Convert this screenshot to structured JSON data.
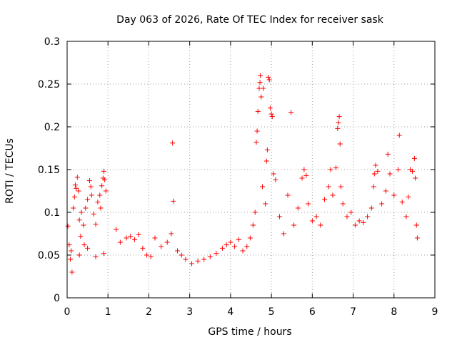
{
  "chart_data": {
    "type": "scatter",
    "title": "Day 063 of 2026, Rate Of TEC Index for receiver sask",
    "xlabel": "GPS time / hours",
    "ylabel": "ROTI / TECUs",
    "xlim": [
      0,
      9
    ],
    "ylim": [
      0,
      0.3
    ],
    "xticks": [
      "0",
      "1",
      "2",
      "3",
      "4",
      "5",
      "6",
      "7",
      "8",
      "9"
    ],
    "yticks": [
      "0",
      "0.05",
      "0.1",
      "0.15",
      "0.2",
      "0.25",
      "0.3"
    ],
    "grid": true,
    "marker": "+",
    "marker_color": "#ff0000",
    "series": [
      {
        "points": [
          [
            0.02,
            0.084
          ],
          [
            0.05,
            0.062
          ],
          [
            0.08,
            0.045
          ],
          [
            0.12,
            0.03
          ],
          [
            0.15,
            0.105
          ],
          [
            0.18,
            0.118
          ],
          [
            0.2,
            0.132
          ],
          [
            0.22,
            0.128
          ],
          [
            0.25,
            0.141
          ],
          [
            0.28,
            0.125
          ],
          [
            0.3,
            0.091
          ],
          [
            0.33,
            0.072
          ],
          [
            0.35,
            0.1
          ],
          [
            0.4,
            0.085
          ],
          [
            0.42,
            0.062
          ],
          [
            0.45,
            0.105
          ],
          [
            0.5,
            0.115
          ],
          [
            0.55,
            0.137
          ],
          [
            0.58,
            0.13
          ],
          [
            0.6,
            0.12
          ],
          [
            0.65,
            0.098
          ],
          [
            0.7,
            0.086
          ],
          [
            0.75,
            0.112
          ],
          [
            0.8,
            0.12
          ],
          [
            0.82,
            0.105
          ],
          [
            0.85,
            0.131
          ],
          [
            0.88,
            0.14
          ],
          [
            0.9,
            0.148
          ],
          [
            0.92,
            0.138
          ],
          [
            0.95,
            0.125
          ],
          [
            0.1,
            0.055
          ],
          [
            0.3,
            0.05
          ],
          [
            0.5,
            0.058
          ],
          [
            0.7,
            0.048
          ],
          [
            0.9,
            0.052
          ],
          [
            1.2,
            0.08
          ],
          [
            1.3,
            0.065
          ],
          [
            1.45,
            0.07
          ],
          [
            1.55,
            0.072
          ],
          [
            1.65,
            0.068
          ],
          [
            1.75,
            0.074
          ],
          [
            1.85,
            0.058
          ],
          [
            1.95,
            0.05
          ],
          [
            2.05,
            0.048
          ],
          [
            2.15,
            0.07
          ],
          [
            2.3,
            0.06
          ],
          [
            2.45,
            0.065
          ],
          [
            2.55,
            0.075
          ],
          [
            2.58,
            0.181
          ],
          [
            2.6,
            0.113
          ],
          [
            2.7,
            0.055
          ],
          [
            2.8,
            0.05
          ],
          [
            2.9,
            0.045
          ],
          [
            3.05,
            0.04
          ],
          [
            3.2,
            0.043
          ],
          [
            3.35,
            0.045
          ],
          [
            3.5,
            0.048
          ],
          [
            3.65,
            0.052
          ],
          [
            3.8,
            0.058
          ],
          [
            3.9,
            0.062
          ],
          [
            4.0,
            0.065
          ],
          [
            4.1,
            0.06
          ],
          [
            4.2,
            0.068
          ],
          [
            4.3,
            0.055
          ],
          [
            4.4,
            0.06
          ],
          [
            4.48,
            0.07
          ],
          [
            4.55,
            0.085
          ],
          [
            4.6,
            0.1
          ],
          [
            4.63,
            0.182
          ],
          [
            4.65,
            0.195
          ],
          [
            4.67,
            0.218
          ],
          [
            4.7,
            0.245
          ],
          [
            4.72,
            0.252
          ],
          [
            4.73,
            0.26
          ],
          [
            4.75,
            0.235
          ],
          [
            4.78,
            0.13
          ],
          [
            4.8,
            0.245
          ],
          [
            4.85,
            0.11
          ],
          [
            4.88,
            0.16
          ],
          [
            4.9,
            0.173
          ],
          [
            4.92,
            0.258
          ],
          [
            4.95,
            0.255
          ],
          [
            4.97,
            0.222
          ],
          [
            5.0,
            0.215
          ],
          [
            5.02,
            0.212
          ],
          [
            5.05,
            0.145
          ],
          [
            5.1,
            0.138
          ],
          [
            5.2,
            0.095
          ],
          [
            5.3,
            0.075
          ],
          [
            5.4,
            0.12
          ],
          [
            5.48,
            0.217
          ],
          [
            5.55,
            0.085
          ],
          [
            5.65,
            0.105
          ],
          [
            5.75,
            0.14
          ],
          [
            5.8,
            0.15
          ],
          [
            5.85,
            0.143
          ],
          [
            5.9,
            0.11
          ],
          [
            6.0,
            0.09
          ],
          [
            6.1,
            0.095
          ],
          [
            6.2,
            0.085
          ],
          [
            6.3,
            0.115
          ],
          [
            6.4,
            0.13
          ],
          [
            6.45,
            0.15
          ],
          [
            6.5,
            0.12
          ],
          [
            6.58,
            0.152
          ],
          [
            6.62,
            0.198
          ],
          [
            6.64,
            0.205
          ],
          [
            6.66,
            0.212
          ],
          [
            6.68,
            0.18
          ],
          [
            6.7,
            0.13
          ],
          [
            6.75,
            0.11
          ],
          [
            6.85,
            0.095
          ],
          [
            6.95,
            0.1
          ],
          [
            7.05,
            0.085
          ],
          [
            7.15,
            0.09
          ],
          [
            7.25,
            0.088
          ],
          [
            7.35,
            0.095
          ],
          [
            7.45,
            0.105
          ],
          [
            7.5,
            0.13
          ],
          [
            7.52,
            0.145
          ],
          [
            7.55,
            0.155
          ],
          [
            7.6,
            0.148
          ],
          [
            7.7,
            0.11
          ],
          [
            7.8,
            0.125
          ],
          [
            7.85,
            0.168
          ],
          [
            7.9,
            0.145
          ],
          [
            8.0,
            0.12
          ],
          [
            8.1,
            0.15
          ],
          [
            8.13,
            0.19
          ],
          [
            8.2,
            0.112
          ],
          [
            8.3,
            0.095
          ],
          [
            8.35,
            0.118
          ],
          [
            8.4,
            0.15
          ],
          [
            8.45,
            0.148
          ],
          [
            8.5,
            0.163
          ],
          [
            8.52,
            0.14
          ],
          [
            8.55,
            0.085
          ],
          [
            8.57,
            0.07
          ]
        ]
      }
    ]
  }
}
